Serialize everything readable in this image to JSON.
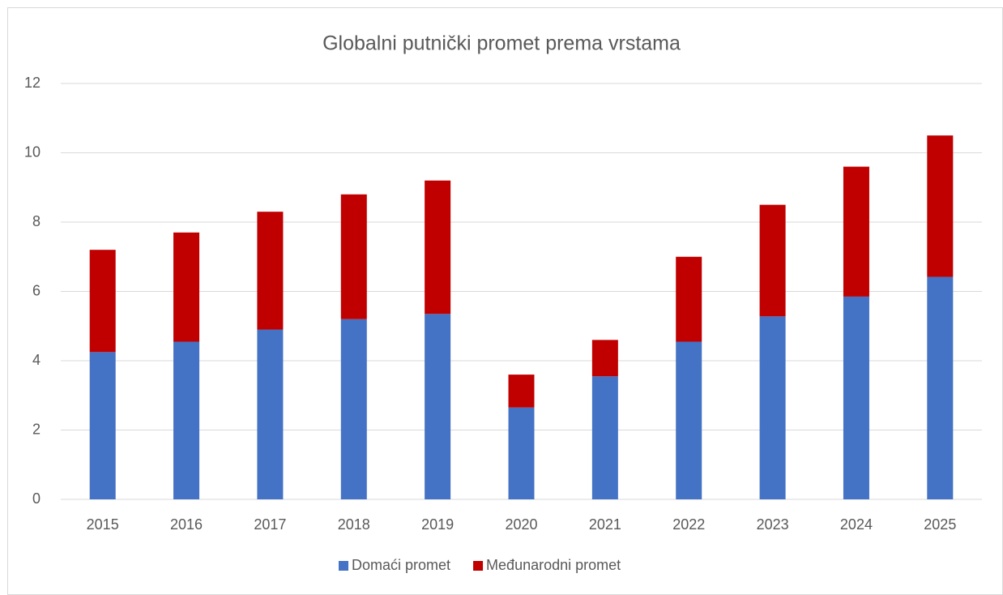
{
  "chart_data": {
    "type": "stacked_bar",
    "title": "Globalni putnički promet prema vrstama",
    "categories": [
      "2015",
      "2016",
      "2017",
      "2018",
      "2019",
      "2020",
      "2021",
      "2022",
      "2023",
      "2024",
      "2025"
    ],
    "series": [
      {
        "name": "Domaći promet",
        "color": "#4472c4",
        "values": [
          4.25,
          4.55,
          4.9,
          5.2,
          5.35,
          2.65,
          3.55,
          4.55,
          5.28,
          5.85,
          6.42
        ]
      },
      {
        "name": "Međunarodni promet",
        "color": "#c00000",
        "values": [
          2.95,
          3.15,
          3.4,
          3.6,
          3.85,
          0.95,
          1.05,
          2.45,
          3.22,
          3.75,
          4.08
        ]
      }
    ],
    "ylim": [
      0,
      12
    ],
    "yticks": [
      0,
      2,
      4,
      6,
      8,
      10,
      12
    ],
    "grid": true,
    "legend": "bottom"
  }
}
